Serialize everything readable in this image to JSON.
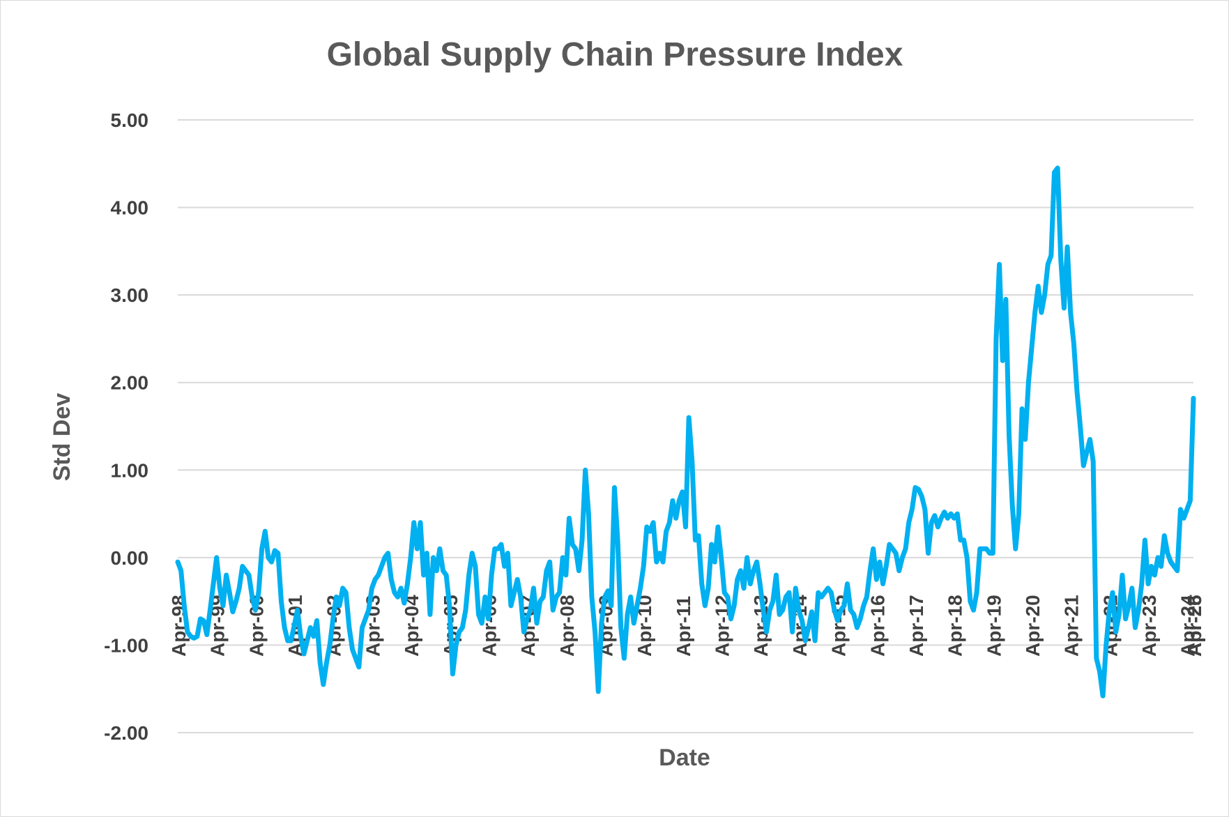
{
  "chart_data": {
    "type": "line",
    "title": "Global Supply Chain Pressure Index",
    "xlabel": "Date",
    "ylabel": "Std Dev",
    "ylim": [
      -2,
      5
    ],
    "yticks": [
      "5.00",
      "4.00",
      "3.00",
      "2.00",
      "1.00",
      "0.00",
      "-1.00",
      "-2.00"
    ],
    "ytick_values": [
      5,
      4,
      3,
      2,
      1,
      0,
      -1,
      -2
    ],
    "xticks": [
      "Apr-98",
      "Apr-99",
      "Apr-00",
      "Apr-01",
      "Apr-02",
      "Apr-03",
      "Apr-04",
      "Apr-05",
      "Apr-06",
      "Apr-07",
      "Apr-08",
      "Apr-09",
      "Apr-10",
      "Apr-11",
      "Apr-12",
      "Apr-13",
      "Apr-14",
      "Apr-15",
      "Apr-16",
      "Apr-17",
      "Apr-18",
      "Apr-19",
      "Apr-20",
      "Apr-21",
      "Apr-22",
      "Apr-23",
      "Apr-24",
      "Apr-25",
      "Apr-26"
    ],
    "grid": true,
    "color": "#00b0f0",
    "series": [
      {
        "x_start": "Apr-98",
        "frequency": "monthly",
        "values": [
          -0.05,
          -0.15,
          -0.55,
          -0.85,
          -0.9,
          -0.92,
          -0.9,
          -0.7,
          -0.72,
          -0.88,
          -0.6,
          -0.3,
          0.0,
          -0.35,
          -0.55,
          -0.2,
          -0.4,
          -0.62,
          -0.5,
          -0.35,
          -0.1,
          -0.15,
          -0.2,
          -0.45,
          -0.6,
          -0.4,
          0.1,
          0.3,
          0.0,
          -0.05,
          0.08,
          0.05,
          -0.5,
          -0.8,
          -0.95,
          -0.95,
          -0.78,
          -0.6,
          -0.9,
          -1.1,
          -0.95,
          -0.8,
          -0.9,
          -0.72,
          -1.2,
          -1.45,
          -1.2,
          -1.0,
          -0.7,
          -0.45,
          -0.55,
          -0.35,
          -0.4,
          -0.8,
          -1.05,
          -1.15,
          -1.25,
          -0.8,
          -0.7,
          -0.6,
          -0.35,
          -0.25,
          -0.2,
          -0.1,
          0.0,
          0.05,
          -0.25,
          -0.4,
          -0.45,
          -0.35,
          -0.52,
          -0.3,
          0.0,
          0.4,
          0.1,
          0.4,
          -0.2,
          0.05,
          -0.65,
          0.0,
          -0.15,
          0.1,
          -0.15,
          -0.2,
          -0.55,
          -1.33,
          -1.0,
          -0.85,
          -0.8,
          -0.6,
          -0.2,
          0.05,
          -0.1,
          -0.65,
          -0.75,
          -0.45,
          -0.7,
          -0.2,
          0.1,
          0.1,
          0.15,
          -0.1,
          0.05,
          -0.55,
          -0.4,
          -0.25,
          -0.45,
          -0.85,
          -0.7,
          -0.6,
          -0.35,
          -0.75,
          -0.5,
          -0.45,
          -0.15,
          -0.05,
          -0.6,
          -0.45,
          -0.4,
          0.0,
          -0.2,
          0.45,
          0.15,
          0.1,
          -0.15,
          0.2,
          1.0,
          0.5,
          -0.45,
          -0.85,
          -1.53,
          -0.75,
          -0.45,
          -0.38,
          -0.55,
          0.8,
          0.2,
          -0.8,
          -1.15,
          -0.65,
          -0.45,
          -0.75,
          -0.55,
          -0.35,
          -0.1,
          0.35,
          0.3,
          0.4,
          -0.05,
          0.05,
          -0.05,
          0.3,
          0.4,
          0.65,
          0.45,
          0.65,
          0.75,
          0.35,
          1.6,
          1.1,
          0.2,
          0.25,
          -0.3,
          -0.55,
          -0.35,
          0.15,
          -0.05,
          0.35,
          0.0,
          -0.4,
          -0.45,
          -0.7,
          -0.55,
          -0.25,
          -0.15,
          -0.35,
          0.0,
          -0.3,
          -0.15,
          -0.05,
          -0.3,
          -0.6,
          -0.85,
          -0.6,
          -0.5,
          -0.2,
          -0.65,
          -0.6,
          -0.45,
          -0.4,
          -0.85,
          -0.35,
          -0.6,
          -0.72,
          -0.95,
          -0.8,
          -0.62,
          -0.95,
          -0.4,
          -0.45,
          -0.4,
          -0.35,
          -0.4,
          -0.6,
          -0.72,
          -0.6,
          -0.55,
          -0.3,
          -0.6,
          -0.65,
          -0.8,
          -0.7,
          -0.55,
          -0.45,
          -0.15,
          0.1,
          -0.25,
          -0.05,
          -0.3,
          -0.1,
          0.15,
          0.1,
          0.05,
          -0.15,
          0.0,
          0.1,
          0.4,
          0.55,
          0.8,
          0.78,
          0.7,
          0.55,
          0.05,
          0.4,
          0.48,
          0.35,
          0.45,
          0.52,
          0.45,
          0.5,
          0.45,
          0.5,
          0.2,
          0.2,
          0.0,
          -0.5,
          -0.6,
          -0.4,
          0.1,
          0.1,
          0.1,
          0.05,
          0.05,
          2.5,
          3.35,
          2.25,
          2.95,
          1.4,
          0.6,
          0.1,
          0.5,
          1.7,
          1.35,
          2.0,
          2.4,
          2.8,
          3.1,
          2.8,
          3.0,
          3.35,
          3.45,
          4.4,
          4.45,
          3.4,
          2.85,
          3.55,
          2.8,
          2.45,
          1.9,
          1.5,
          1.05,
          1.2,
          1.35,
          1.1,
          -1.15,
          -1.3,
          -1.58,
          -1.0,
          -0.6,
          -0.4,
          -0.85,
          -0.65,
          -0.2,
          -0.7,
          -0.55,
          -0.35,
          -0.8,
          -0.6,
          -0.3,
          0.2,
          -0.3,
          -0.1,
          -0.2,
          0.0,
          -0.1,
          0.25,
          0.05,
          -0.05,
          -0.1,
          -0.15,
          0.55,
          0.45,
          0.55,
          0.65,
          1.82
        ]
      }
    ]
  }
}
